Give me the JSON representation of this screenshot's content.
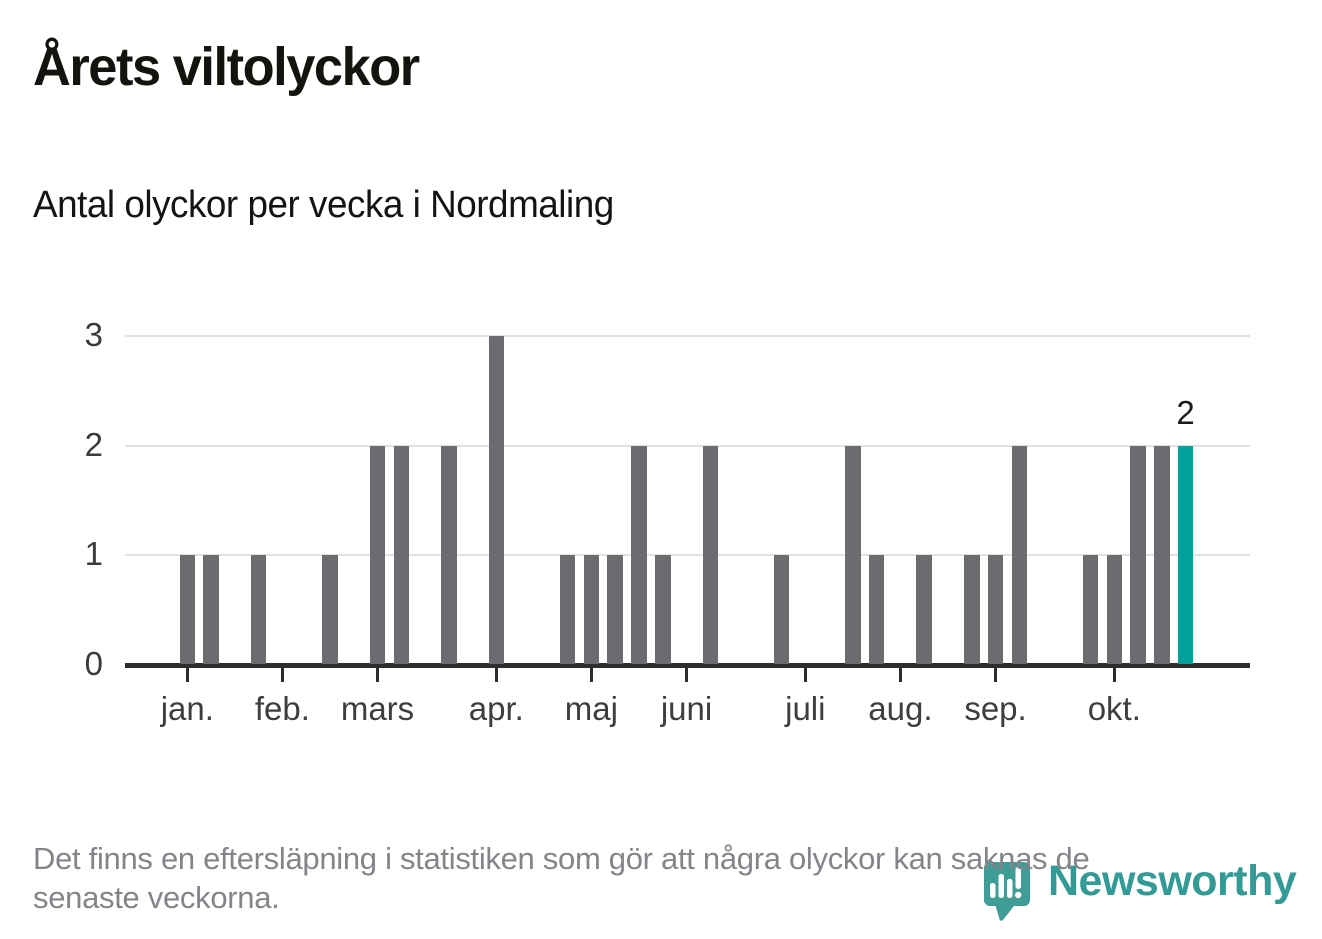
{
  "header": {
    "title": "Årets viltolyckor",
    "subtitle": "Antal olyckor per vecka i Nordmaling"
  },
  "chart_data": {
    "type": "bar",
    "title": "Årets viltolyckor",
    "subtitle": "Antal olyckor per vecka i Nordmaling",
    "x_unit": "vecka (week of year)",
    "values": [
      1,
      1,
      0,
      1,
      0,
      0,
      1,
      0,
      2,
      2,
      0,
      2,
      0,
      3,
      0,
      0,
      1,
      1,
      1,
      2,
      1,
      0,
      2,
      0,
      0,
      1,
      0,
      0,
      2,
      1,
      0,
      1,
      0,
      1,
      1,
      2,
      0,
      0,
      1,
      1,
      2,
      2,
      2
    ],
    "weeks": [
      1,
      2,
      3,
      4,
      5,
      6,
      7,
      8,
      9,
      10,
      11,
      12,
      13,
      14,
      15,
      16,
      17,
      18,
      19,
      20,
      21,
      22,
      23,
      24,
      25,
      26,
      27,
      28,
      29,
      30,
      31,
      32,
      33,
      34,
      35,
      36,
      37,
      38,
      39,
      40,
      41,
      42,
      43
    ],
    "months": [
      {
        "label": "jan.",
        "week": 1
      },
      {
        "label": "feb.",
        "week": 5
      },
      {
        "label": "mars",
        "week": 9
      },
      {
        "label": "apr.",
        "week": 14
      },
      {
        "label": "maj",
        "week": 18
      },
      {
        "label": "juni",
        "week": 22
      },
      {
        "label": "juli",
        "week": 27
      },
      {
        "label": "aug.",
        "week": 31
      },
      {
        "label": "sep.",
        "week": 35
      },
      {
        "label": "okt.",
        "week": 40
      }
    ],
    "y_ticks": [
      "0",
      "1",
      "2",
      "3"
    ],
    "ylim": [
      0,
      3
    ],
    "grid": true,
    "legend": "none",
    "bar_color": "#6b6b70",
    "highlight_last_bar": true,
    "highlight_color": "#00a19a",
    "last_bar_value_label": "2"
  },
  "footer": {
    "note_line1": "Det finns en eftersläpning i statistiken som gör att några olyckor kan saknas de",
    "note_line2": "senaste veckorna."
  },
  "logo": {
    "text": "Newsworthy",
    "icon": "newsworthy-pin-icon",
    "icon_color": "#3f9c96",
    "text_color": "#349a95"
  }
}
